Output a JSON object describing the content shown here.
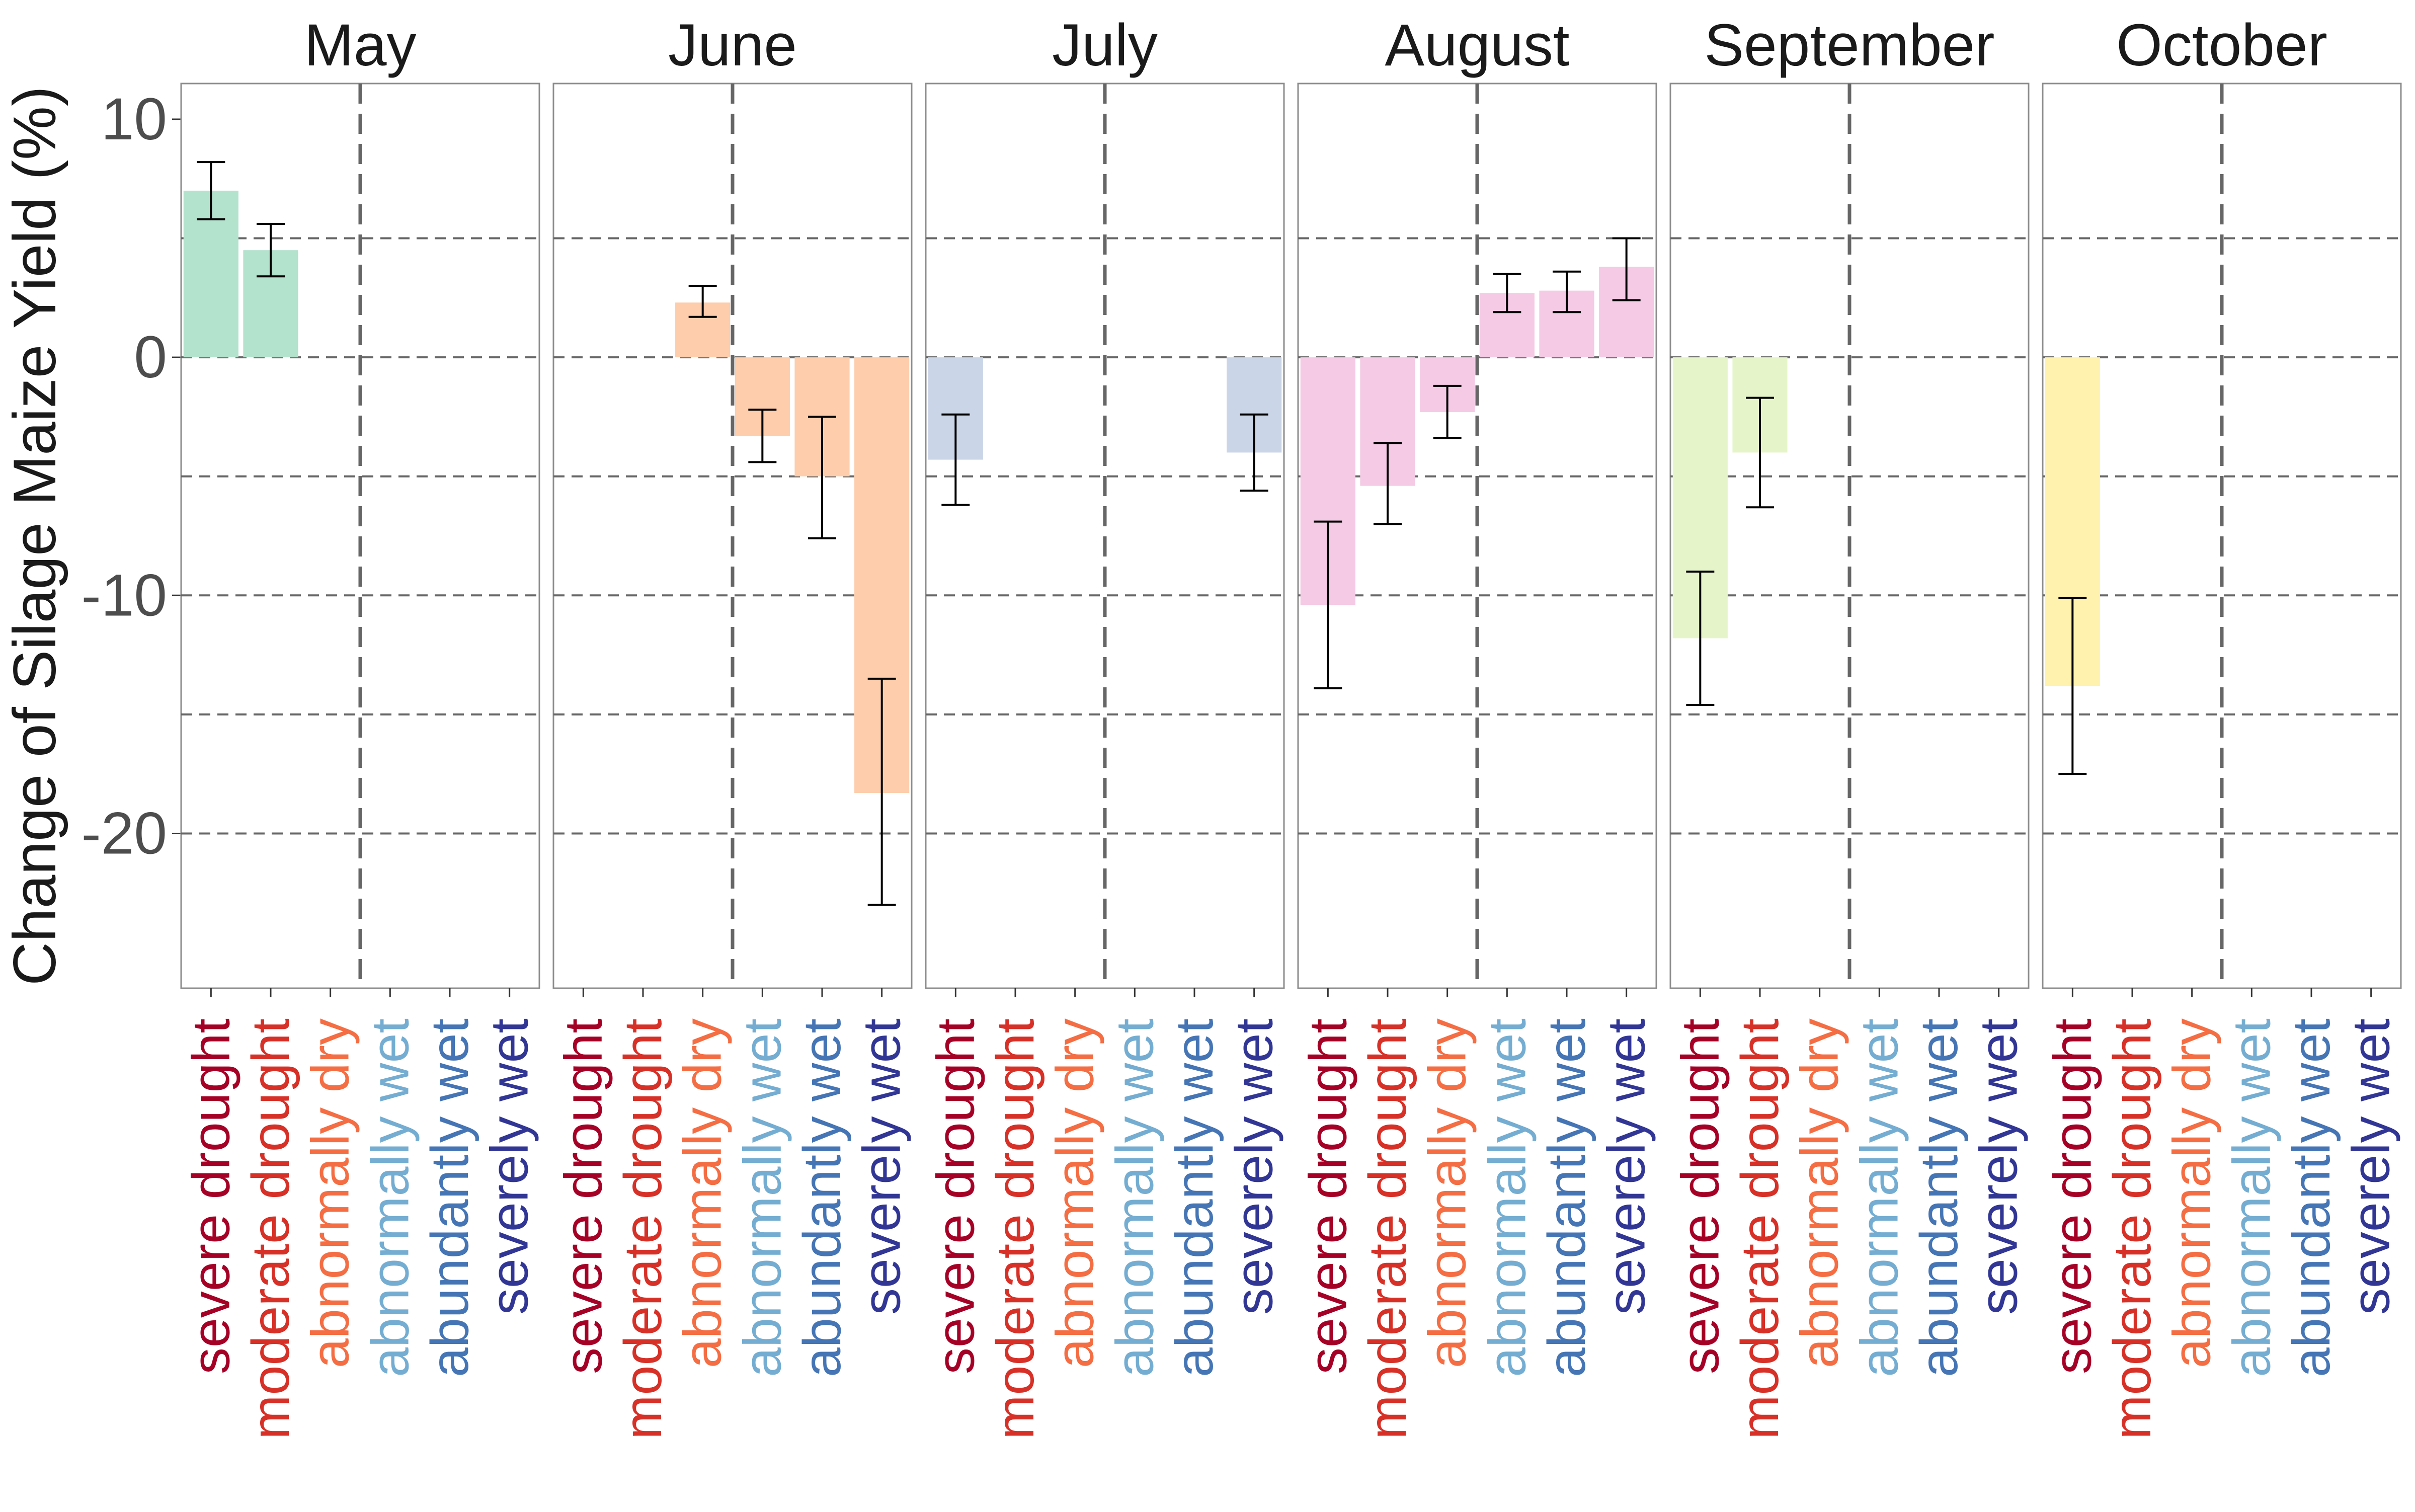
{
  "chart_data": {
    "type": "bar",
    "ylabel": "Change of Silage Maize Yield (%)",
    "ylim": [
      -26.5,
      11.5
    ],
    "yticks": [
      10,
      0,
      -10,
      -20
    ],
    "ytick_labels": [
      "10",
      "0",
      "-10",
      "-20"
    ],
    "grid_y": [
      5,
      0,
      -5,
      -10,
      -15,
      -20
    ],
    "categories": [
      "severe drought",
      "moderate drought",
      "abnormally dry",
      "abnormally wet",
      "abundantly wet",
      "severely wet"
    ],
    "category_colors": [
      "#a50026",
      "#d73027",
      "#f46d43",
      "#74add1",
      "#4575b4",
      "#313695"
    ],
    "panels": [
      {
        "title": "May",
        "color": "#b3e2cd",
        "values": [
          7.0,
          4.5,
          null,
          null,
          null,
          null
        ],
        "err_low": [
          5.8,
          3.4,
          null,
          null,
          null,
          null
        ],
        "err_high": [
          8.2,
          5.6,
          null,
          null,
          null,
          null
        ]
      },
      {
        "title": "June",
        "color": "#fdcdac",
        "values": [
          null,
          null,
          2.3,
          -3.3,
          -5.0,
          -18.3
        ],
        "err_low": [
          null,
          null,
          1.7,
          -4.4,
          -7.6,
          -23.0
        ],
        "err_high": [
          null,
          null,
          3.0,
          -2.2,
          -2.5,
          -13.5
        ]
      },
      {
        "title": "July",
        "color": "#cbd5e8",
        "values": [
          -4.3,
          null,
          null,
          null,
          null,
          -4.0
        ],
        "err_low": [
          -6.2,
          null,
          null,
          null,
          null,
          -5.6
        ],
        "err_high": [
          -2.4,
          null,
          null,
          null,
          null,
          -2.4
        ]
      },
      {
        "title": "August",
        "color": "#f4cae4",
        "values": [
          -10.4,
          -5.4,
          -2.3,
          2.7,
          2.8,
          3.8
        ],
        "err_low": [
          -13.9,
          -7.0,
          -3.4,
          1.9,
          1.9,
          2.4
        ],
        "err_high": [
          -6.9,
          -3.6,
          -1.2,
          3.5,
          3.6,
          5.0
        ]
      },
      {
        "title": "September",
        "color": "#e6f5c9",
        "values": [
          -11.8,
          -4.0,
          null,
          null,
          null,
          null
        ],
        "err_low": [
          -14.6,
          -6.3,
          null,
          null,
          null,
          null
        ],
        "err_high": [
          -9.0,
          -1.7,
          null,
          null,
          null,
          null
        ]
      },
      {
        "title": "October",
        "color": "#fff2ae",
        "values": [
          -13.8,
          null,
          null,
          null,
          null,
          null
        ],
        "err_low": [
          -17.5,
          null,
          null,
          null,
          null,
          null
        ],
        "err_high": [
          -10.1,
          null,
          null,
          null,
          null,
          null
        ]
      }
    ]
  }
}
